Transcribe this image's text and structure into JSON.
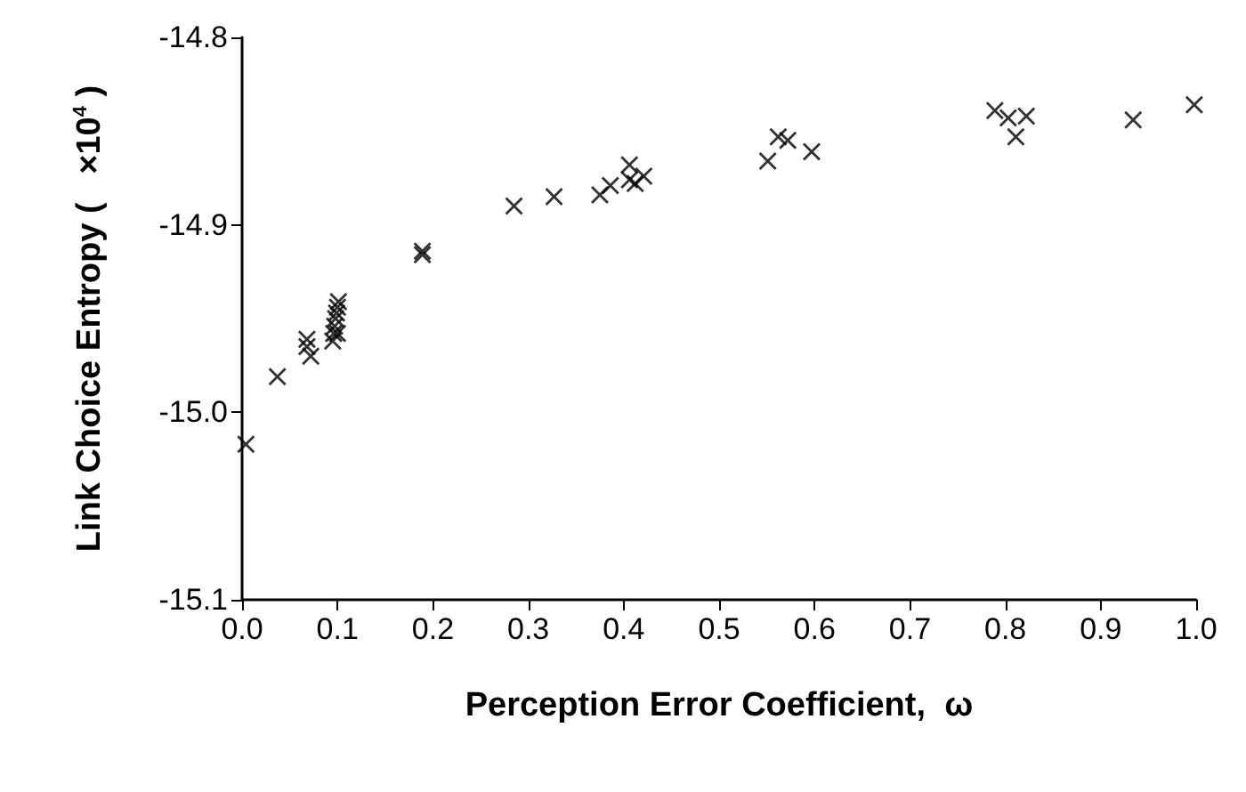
{
  "chart_data": {
    "type": "scatter",
    "xlabel": "Perception Error Coefficient,  ω",
    "ylabel": "Link Choice Entropy (   ×10$^{4}$ )",
    "marker": "cross",
    "grid": false,
    "xlim": [
      0,
      1
    ],
    "ylim": [
      -15.1,
      -14.8
    ],
    "xticks": [
      {
        "value": 0,
        "label": "0.0"
      },
      {
        "value": 0.1,
        "label": "0.1"
      },
      {
        "value": 0.2,
        "label": "0.2"
      },
      {
        "value": 0.3,
        "label": "0.3"
      },
      {
        "value": 0.4,
        "label": "0.4"
      },
      {
        "value": 0.5,
        "label": "0.5"
      },
      {
        "value": 0.6,
        "label": "0.6"
      },
      {
        "value": 0.7,
        "label": "0.7"
      },
      {
        "value": 0.8,
        "label": "0.8"
      },
      {
        "value": 0.9,
        "label": "0.9"
      },
      {
        "value": 1,
        "label": "1.0"
      }
    ],
    "yticks": [
      {
        "value": -15.1,
        "label": "-15.1"
      },
      {
        "value": -15,
        "label": "-15.0"
      },
      {
        "value": -14.9,
        "label": "-14.9"
      },
      {
        "value": -14.8,
        "label": "-14.8"
      }
    ],
    "series": [
      {
        "color": "#000000",
        "x": [
          0.004,
          0.037,
          0.068,
          0.068,
          0.072,
          0.095,
          0.096,
          0.097,
          0.098,
          0.099,
          0.1,
          0.1,
          0.101,
          0.189,
          0.189,
          0.285,
          0.327,
          0.375,
          0.386,
          0.406,
          0.406,
          0.412,
          0.421,
          0.551,
          0.562,
          0.572,
          0.597,
          0.789,
          0.803,
          0.822,
          0.811,
          0.934,
          0.998
        ],
        "values": [
          -15.017,
          -14.981,
          -14.961,
          -14.965,
          -14.97,
          -14.962,
          -14.958,
          -14.954,
          -14.95,
          -14.947,
          -14.944,
          -14.958,
          -14.941,
          -14.914,
          -14.916,
          -14.89,
          -14.885,
          -14.884,
          -14.879,
          -14.868,
          -14.876,
          -14.878,
          -14.874,
          -14.866,
          -14.853,
          -14.855,
          -14.861,
          -14.839,
          -14.843,
          -14.842,
          -14.853,
          -14.844,
          -14.836
        ]
      }
    ]
  }
}
